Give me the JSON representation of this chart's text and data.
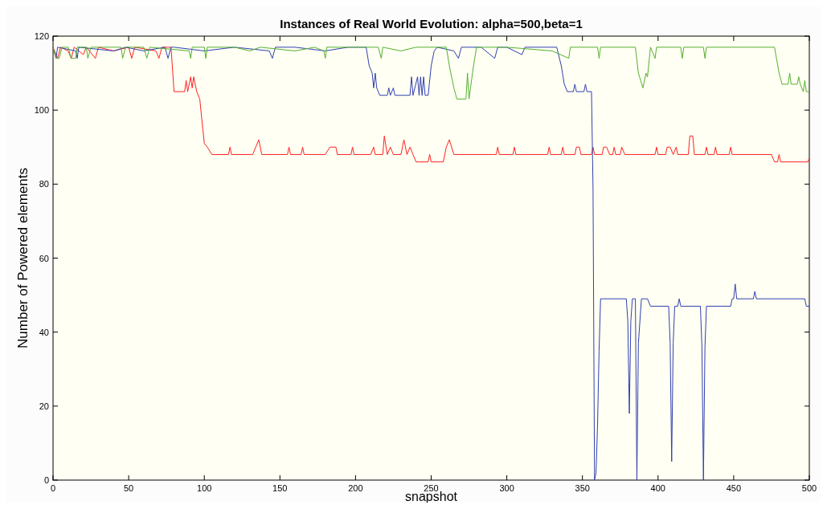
{
  "chart_data": {
    "type": "line",
    "title": "Instances of Real World Evolution: alpha=500,beta=1",
    "xlabel": "snapshot",
    "ylabel": "Number of Powered elements",
    "xlim": [
      0,
      500
    ],
    "ylim": [
      0,
      120
    ],
    "xticks": [
      0,
      50,
      100,
      150,
      200,
      250,
      300,
      350,
      400,
      450,
      500
    ],
    "yticks": [
      0,
      20,
      40,
      60,
      80,
      100,
      120
    ],
    "series": [
      {
        "color": "#ff2020",
        "x": [
          0,
          3,
          5,
          10,
          12,
          14,
          20,
          22,
          28,
          30,
          40,
          50,
          52,
          54,
          68,
          70,
          72,
          78,
          80,
          87,
          88,
          89,
          91,
          92,
          93,
          95,
          97,
          99,
          100,
          102,
          105,
          116,
          117,
          118,
          132,
          134,
          136,
          138,
          155,
          156,
          157,
          164,
          165,
          166,
          180,
          183,
          187,
          188,
          197,
          198,
          199,
          210,
          212,
          213,
          218,
          219,
          221,
          223,
          225,
          230,
          232,
          234,
          236,
          238,
          240,
          248,
          249,
          250,
          258,
          260,
          262,
          265,
          293,
          294,
          295,
          304,
          305,
          306,
          327,
          328,
          329,
          336,
          337,
          338,
          345,
          346,
          348,
          349,
          356,
          357,
          358,
          363,
          364,
          366,
          368,
          370,
          371,
          372,
          375,
          376,
          378,
          398,
          399,
          400,
          405,
          406,
          408,
          410,
          412,
          413,
          420,
          421,
          423,
          424,
          431,
          432,
          433,
          437,
          438,
          439,
          447,
          448,
          449,
          475,
          477,
          479,
          480,
          481,
          499,
          500
        ],
        "values": [
          117,
          114,
          117,
          116,
          114,
          117,
          115,
          117,
          114,
          117,
          116,
          117,
          114,
          117,
          116,
          114,
          117,
          117,
          105,
          105,
          108,
          105,
          109,
          106,
          109,
          105,
          103,
          95,
          91,
          90,
          88,
          88,
          90,
          88,
          88,
          90,
          92,
          88,
          88,
          90,
          88,
          88,
          90,
          88,
          88,
          90,
          90,
          88,
          88,
          90,
          88,
          88,
          90,
          88,
          88,
          93,
          88,
          90,
          88,
          88,
          92,
          88,
          90,
          88,
          86,
          86,
          88,
          86,
          86,
          90,
          92,
          88,
          88,
          90,
          88,
          88,
          90,
          88,
          88,
          90,
          88,
          88,
          90,
          88,
          88,
          90,
          90,
          88,
          88,
          90,
          88,
          88,
          90,
          90,
          88,
          88,
          90,
          88,
          88,
          90,
          88,
          88,
          90,
          88,
          88,
          90,
          90,
          88,
          90,
          88,
          88,
          93,
          93,
          88,
          88,
          90,
          88,
          88,
          90,
          88,
          88,
          90,
          88,
          88,
          86,
          86,
          88,
          86,
          86,
          87
        ]
      },
      {
        "color": "#3040b0",
        "x": [
          0,
          2,
          3,
          15,
          16,
          17,
          40,
          48,
          60,
          74,
          76,
          78,
          80,
          100,
          120,
          143,
          145,
          147,
          160,
          180,
          195,
          204,
          207,
          209,
          211,
          212,
          213,
          214,
          216,
          221,
          222,
          223,
          225,
          226,
          236,
          237,
          238,
          241,
          242,
          243,
          244,
          245,
          246,
          248,
          250,
          252,
          254,
          265,
          268,
          270,
          283,
          292,
          294,
          300,
          310,
          312,
          333,
          336,
          338,
          340,
          344,
          345,
          346,
          351,
          352,
          353,
          356,
          357,
          358,
          359,
          360,
          361,
          362,
          379,
          380,
          381,
          382,
          383,
          385,
          386,
          387,
          389,
          393,
          395,
          407,
          408,
          409,
          410,
          411,
          413,
          414,
          415,
          428,
          429,
          430,
          431,
          432,
          448,
          449,
          450,
          451,
          452,
          463,
          464,
          465,
          497,
          498,
          500
        ],
        "values": [
          117,
          114,
          117,
          116,
          114,
          117,
          116,
          117,
          116,
          117,
          114,
          117,
          117,
          116,
          117,
          116,
          114,
          117,
          117,
          116,
          117,
          117,
          117,
          112,
          110,
          106,
          110,
          106,
          104,
          104,
          106,
          104,
          106,
          104,
          104,
          109,
          104,
          109,
          104,
          109,
          104,
          109,
          104,
          104,
          112,
          116,
          117,
          116,
          114,
          117,
          117,
          114,
          117,
          117,
          115,
          117,
          117,
          112,
          107,
          105,
          105,
          107,
          105,
          105,
          107,
          105,
          105,
          79,
          0,
          2,
          15,
          35,
          49,
          49,
          43,
          18,
          43,
          49,
          49,
          0,
          37,
          49,
          49,
          47,
          47,
          37,
          5,
          37,
          47,
          47,
          49,
          47,
          47,
          36,
          0,
          36,
          47,
          47,
          49,
          49,
          53,
          49,
          49,
          51,
          49,
          49,
          47,
          47
        ]
      },
      {
        "color": "#55b030",
        "x": [
          0,
          2,
          4,
          6,
          10,
          12,
          15,
          16,
          22,
          23,
          25,
          45,
          46,
          48,
          60,
          62,
          64,
          90,
          91,
          92,
          100,
          101,
          102,
          120,
          130,
          137,
          160,
          173,
          179,
          180,
          181,
          200,
          215,
          217,
          218,
          230,
          240,
          260,
          262,
          265,
          267,
          273,
          274,
          275,
          276,
          278,
          280,
          300,
          330,
          341,
          342,
          360,
          361,
          362,
          385,
          387,
          390,
          392,
          393,
          395,
          398,
          399,
          415,
          416,
          417,
          430,
          431,
          432,
          460,
          477,
          480,
          482,
          486,
          487,
          488,
          492,
          493,
          494,
          496,
          497,
          498,
          500
        ],
        "values": [
          117,
          114,
          114,
          117,
          117,
          114,
          114,
          117,
          117,
          114,
          117,
          117,
          114,
          117,
          117,
          114,
          117,
          116,
          114,
          117,
          117,
          114,
          117,
          117,
          116,
          117,
          116,
          117,
          116,
          114,
          117,
          117,
          117,
          114,
          117,
          116,
          117,
          117,
          112,
          106,
          103,
          103,
          110,
          103,
          106,
          112,
          117,
          117,
          116,
          114,
          117,
          117,
          114,
          117,
          117,
          110,
          106,
          110,
          109,
          117,
          114,
          117,
          117,
          114,
          117,
          117,
          114,
          117,
          117,
          117,
          110,
          107,
          107,
          110,
          107,
          107,
          109,
          107,
          105,
          108,
          105,
          105
        ]
      }
    ]
  }
}
